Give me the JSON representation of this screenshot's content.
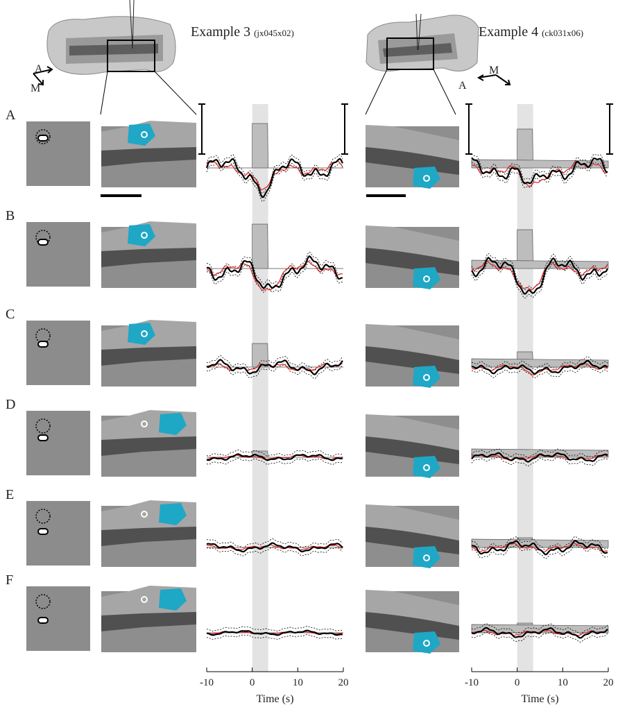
{
  "examples": [
    {
      "title": "Example 3",
      "id": "(jx045x02)"
    },
    {
      "title": "Example 4",
      "id": "(ck031x06)"
    }
  ],
  "orientation": [
    {
      "a": "A",
      "m": "M"
    },
    {
      "a": "A",
      "m": "M"
    }
  ],
  "rows": [
    "A",
    "B",
    "C",
    "D",
    "E",
    "F"
  ],
  "time_axis": {
    "xlim": [
      -10,
      20
    ],
    "xticks": [
      -10,
      0,
      10,
      20
    ],
    "label": "Time (s)",
    "stimulus": [
      0,
      3.5
    ]
  }
}
